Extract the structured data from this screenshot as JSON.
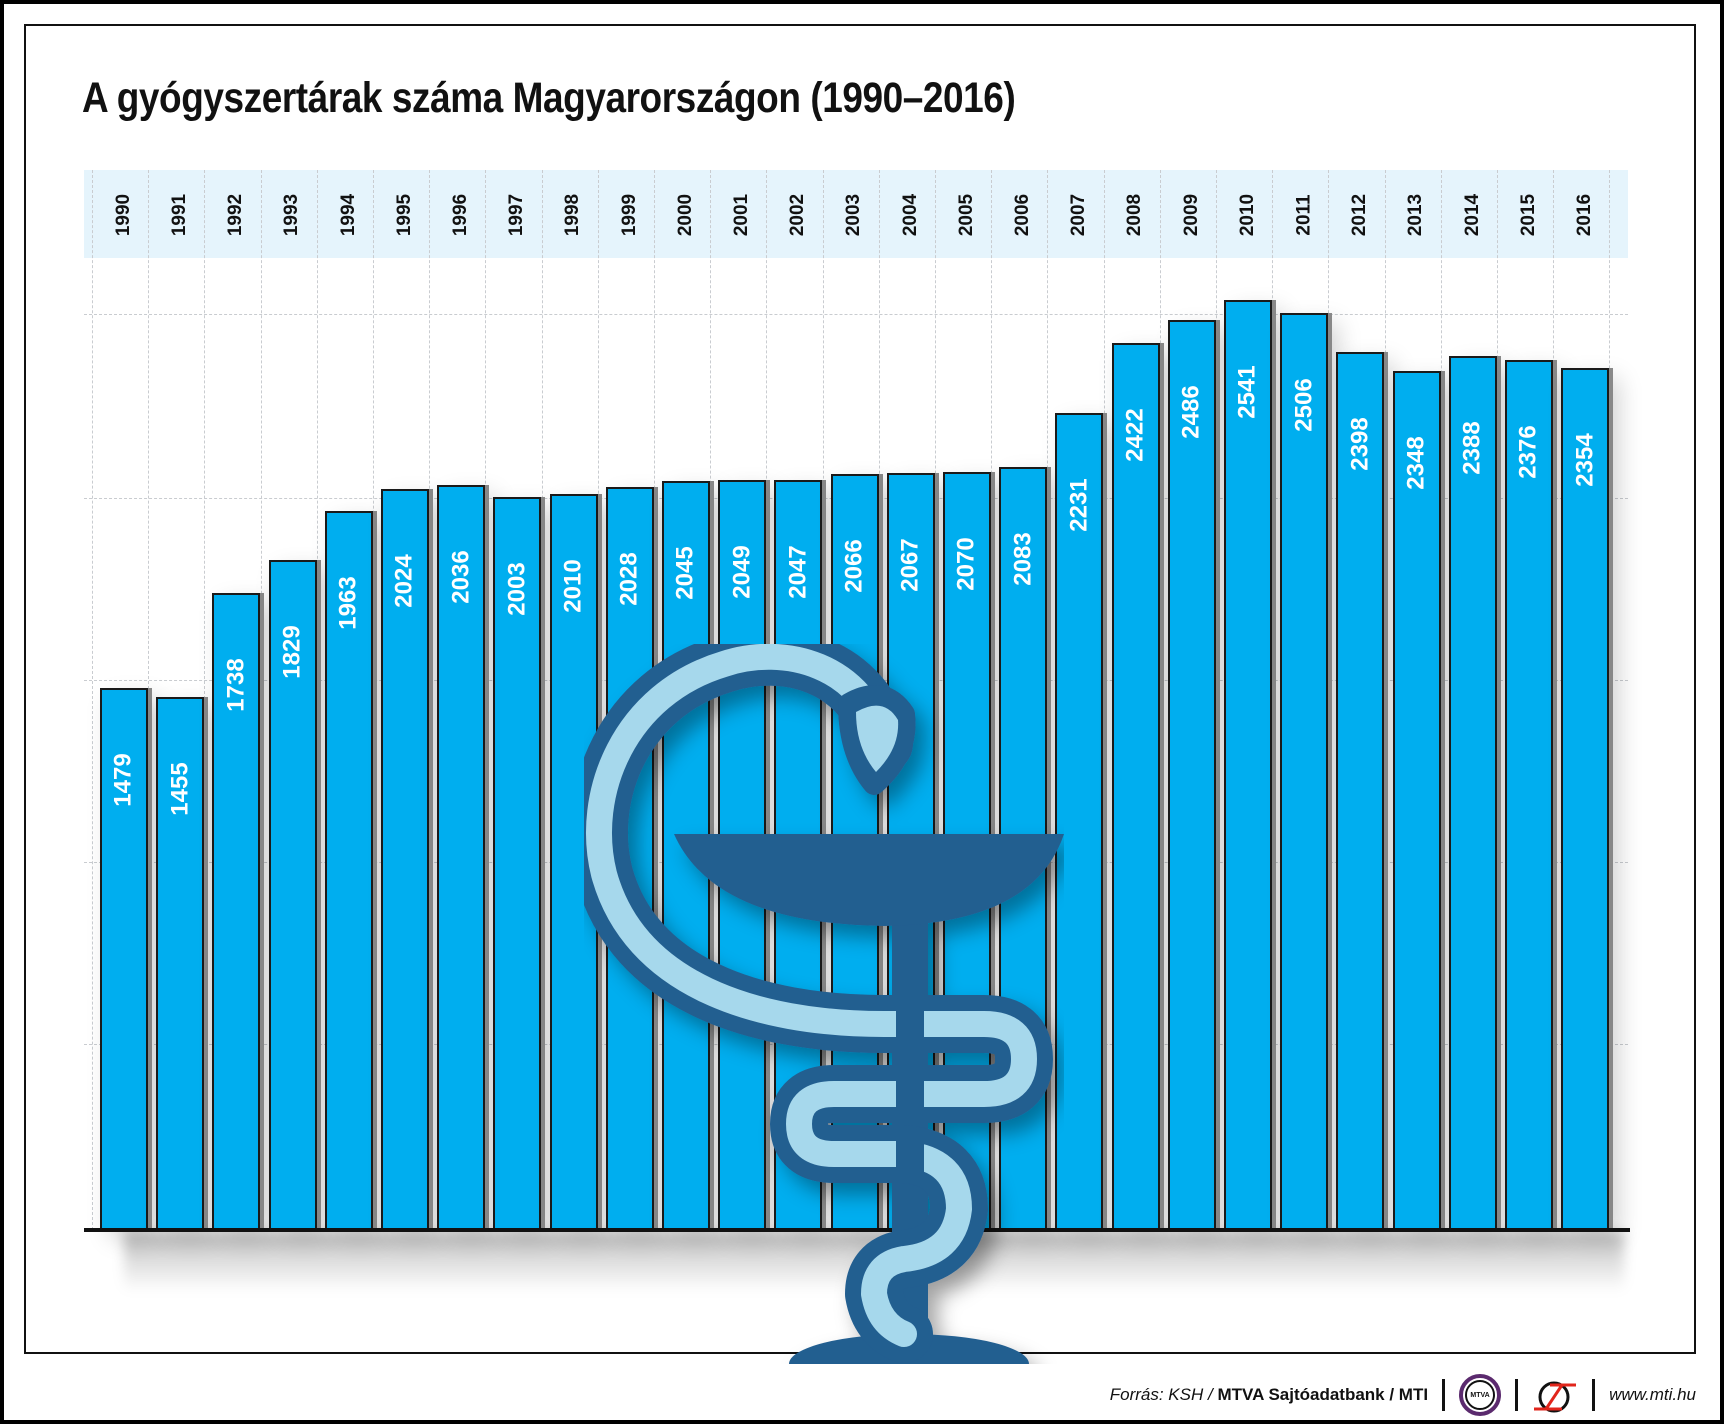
{
  "header": {
    "title": "A gyógyszertárak száma Magyarországon (1990–2016)"
  },
  "footer": {
    "source_prefix": "Forrás: KSH /",
    "source_bold": "MTVA Sajtóadatbank / MTI",
    "logo_mtva_label": "MTVA",
    "url": "www.mti.hu"
  },
  "colors": {
    "bar": "#00aeef",
    "symbol_dark": "#245e90",
    "symbol_light": "#a6d8ec",
    "year_band": "#e5f4fc",
    "mtva_ring": "#5b2a6e",
    "mti_red": "#e1251b"
  },
  "chart_data": {
    "type": "bar",
    "title": "A gyógyszertárak száma Magyarországon (1990–2016)",
    "xlabel": "",
    "ylabel": "",
    "categories": [
      "1990",
      "1991",
      "1992",
      "1993",
      "1994",
      "1995",
      "1996",
      "1997",
      "1998",
      "1999",
      "2000",
      "2001",
      "2002",
      "2003",
      "2004",
      "2005",
      "2006",
      "2007",
      "2008",
      "2009",
      "2010",
      "2011",
      "2012",
      "2013",
      "2014",
      "2015",
      "2016"
    ],
    "values": [
      1479,
      1455,
      1738,
      1829,
      1963,
      2024,
      2036,
      2003,
      2010,
      2028,
      2045,
      2049,
      2047,
      2066,
      2067,
      2070,
      2083,
      2231,
      2422,
      2486,
      2541,
      2506,
      2398,
      2348,
      2388,
      2376,
      2354
    ],
    "ylim": [
      0,
      2700
    ],
    "grid": true,
    "legend": "none",
    "data_labels": true,
    "source": "Forrás: KSH / MTVA Sajtóadatbank / MTI"
  }
}
